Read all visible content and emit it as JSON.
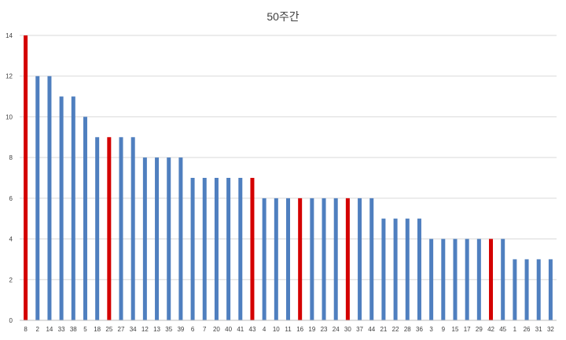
{
  "chart_data": {
    "type": "bar",
    "title": "50주간",
    "xlabel": "",
    "ylabel": "",
    "ylim": [
      0,
      14
    ],
    "yticks": [
      0,
      2,
      4,
      6,
      8,
      10,
      12,
      14
    ],
    "grid": true,
    "legend": "none",
    "colors": {
      "default": "#4f7fbf",
      "highlight": "#d40000"
    },
    "categories": [
      "8",
      "2",
      "14",
      "33",
      "38",
      "5",
      "18",
      "25",
      "27",
      "34",
      "12",
      "13",
      "35",
      "39",
      "6",
      "7",
      "20",
      "40",
      "41",
      "43",
      "4",
      "10",
      "11",
      "16",
      "19",
      "23",
      "24",
      "30",
      "37",
      "44",
      "21",
      "22",
      "28",
      "36",
      "3",
      "9",
      "15",
      "17",
      "29",
      "42",
      "45",
      "1",
      "26",
      "31",
      "32"
    ],
    "values": [
      14,
      12,
      12,
      11,
      11,
      10,
      9,
      9,
      9,
      9,
      8,
      8,
      8,
      8,
      7,
      7,
      7,
      7,
      7,
      7,
      6,
      6,
      6,
      6,
      6,
      6,
      6,
      6,
      6,
      6,
      5,
      5,
      5,
      5,
      4,
      4,
      4,
      4,
      4,
      4,
      4,
      3,
      3,
      3,
      3
    ],
    "highlighted": [
      "8",
      "25",
      "43",
      "16",
      "30",
      "42"
    ]
  }
}
